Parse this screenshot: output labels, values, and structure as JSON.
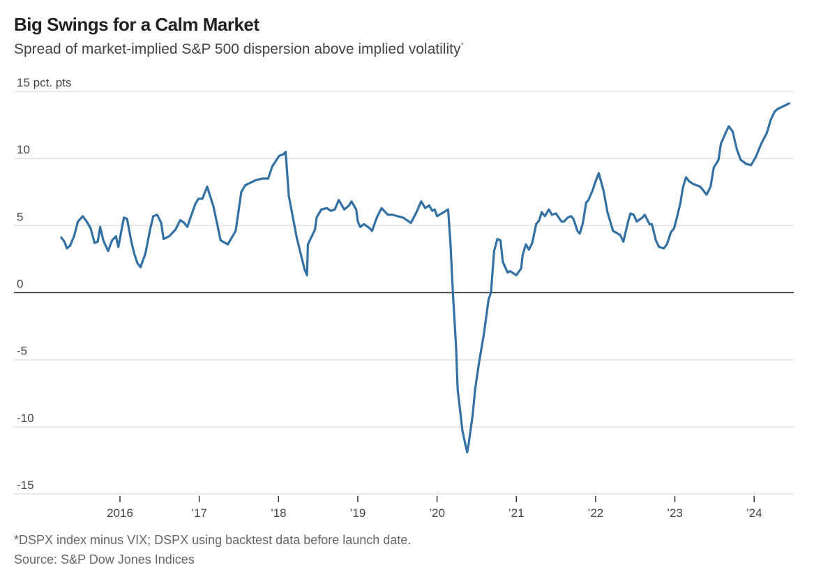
{
  "title": "Big Swings for a Calm Market",
  "subtitle": "Spread of market-implied S&P 500 dispersion above implied volatility",
  "subtitle_marker": "*",
  "footnote": "*DSPX index minus VIX; DSPX using backtest data before launch date.",
  "source": "Source: S&P Dow Jones Indices",
  "colors": {
    "line": "#3370a3",
    "grid": "#e2e2e2",
    "zero": "#333333",
    "tick": "#333333"
  },
  "chart_data": {
    "type": "line",
    "title": "Big Swings for a Calm Market",
    "subtitle": "Spread of market-implied S&P 500 dispersion above implied volatility*",
    "xlabel": "",
    "ylabel": "pct. pts",
    "ylim": [
      -15,
      15
    ],
    "xlim": [
      2014.87,
      2024.84
    ],
    "grid": true,
    "legend": "none",
    "yticks": [
      {
        "value": 15,
        "label": "15 pct. pts"
      },
      {
        "value": 10,
        "label": "10"
      },
      {
        "value": 5,
        "label": "5"
      },
      {
        "value": 0,
        "label": "0"
      },
      {
        "value": -5,
        "label": "-5"
      },
      {
        "value": -10,
        "label": "-10"
      },
      {
        "value": -15,
        "label": "-15"
      }
    ],
    "xticks": [
      {
        "value": 2016,
        "label": "2016"
      },
      {
        "value": 2017,
        "label": "’17"
      },
      {
        "value": 2018,
        "label": "’18"
      },
      {
        "value": 2019,
        "label": "’19"
      },
      {
        "value": 2020,
        "label": "’20"
      },
      {
        "value": 2021,
        "label": "’21"
      },
      {
        "value": 2022,
        "label": "’22"
      },
      {
        "value": 2023,
        "label": "’23"
      },
      {
        "value": 2024,
        "label": "’24"
      }
    ],
    "series": [
      {
        "name": "DSPX minus VIX",
        "points": [
          [
            2015.26,
            4.1
          ],
          [
            2015.3,
            3.8
          ],
          [
            2015.33,
            3.3
          ],
          [
            2015.37,
            3.5
          ],
          [
            2015.42,
            4.2
          ],
          [
            2015.47,
            5.3
          ],
          [
            2015.53,
            5.7
          ],
          [
            2015.58,
            5.3
          ],
          [
            2015.63,
            4.8
          ],
          [
            2015.68,
            3.7
          ],
          [
            2015.72,
            3.8
          ],
          [
            2015.75,
            4.9
          ],
          [
            2015.79,
            3.9
          ],
          [
            2015.85,
            3.1
          ],
          [
            2015.9,
            3.9
          ],
          [
            2015.95,
            4.2
          ],
          [
            2015.98,
            3.4
          ],
          [
            2016.03,
            5.0
          ],
          [
            2016.05,
            5.6
          ],
          [
            2016.09,
            5.5
          ],
          [
            2016.14,
            3.9
          ],
          [
            2016.18,
            2.9
          ],
          [
            2016.22,
            2.2
          ],
          [
            2016.26,
            1.9
          ],
          [
            2016.32,
            2.9
          ],
          [
            2016.38,
            4.7
          ],
          [
            2016.42,
            5.7
          ],
          [
            2016.47,
            5.8
          ],
          [
            2016.52,
            5.2
          ],
          [
            2016.55,
            4.0
          ],
          [
            2016.62,
            4.2
          ],
          [
            2016.7,
            4.7
          ],
          [
            2016.76,
            5.4
          ],
          [
            2016.81,
            5.2
          ],
          [
            2016.85,
            4.9
          ],
          [
            2016.89,
            5.6
          ],
          [
            2016.95,
            6.6
          ],
          [
            2016.99,
            7.0
          ],
          [
            2017.04,
            7.0
          ],
          [
            2017.1,
            7.9
          ],
          [
            2017.18,
            6.4
          ],
          [
            2017.27,
            3.9
          ],
          [
            2017.36,
            3.6
          ],
          [
            2017.46,
            4.6
          ],
          [
            2017.53,
            7.5
          ],
          [
            2017.58,
            8.0
          ],
          [
            2017.72,
            8.4
          ],
          [
            2017.8,
            8.5
          ],
          [
            2017.87,
            8.5
          ],
          [
            2017.92,
            9.4
          ],
          [
            2018.01,
            10.2
          ],
          [
            2018.06,
            10.3
          ],
          [
            2018.09,
            10.5
          ],
          [
            2018.13,
            7.2
          ],
          [
            2018.23,
            4.1
          ],
          [
            2018.33,
            1.7
          ],
          [
            2018.36,
            1.3
          ],
          [
            2018.37,
            3.6
          ],
          [
            2018.46,
            4.7
          ],
          [
            2018.48,
            5.6
          ],
          [
            2018.54,
            6.2
          ],
          [
            2018.61,
            6.3
          ],
          [
            2018.66,
            6.1
          ],
          [
            2018.71,
            6.2
          ],
          [
            2018.76,
            6.9
          ],
          [
            2018.83,
            6.2
          ],
          [
            2018.89,
            6.5
          ],
          [
            2018.92,
            6.8
          ],
          [
            2018.98,
            6.2
          ],
          [
            2019.0,
            5.3
          ],
          [
            2019.03,
            4.9
          ],
          [
            2019.08,
            5.1
          ],
          [
            2019.15,
            4.8
          ],
          [
            2019.18,
            4.6
          ],
          [
            2019.24,
            5.6
          ],
          [
            2019.3,
            6.3
          ],
          [
            2019.38,
            5.8
          ],
          [
            2019.44,
            5.8
          ],
          [
            2019.5,
            5.7
          ],
          [
            2019.57,
            5.6
          ],
          [
            2019.62,
            5.4
          ],
          [
            2019.67,
            5.2
          ],
          [
            2019.74,
            6.0
          ],
          [
            2019.8,
            6.8
          ],
          [
            2019.85,
            6.3
          ],
          [
            2019.9,
            6.5
          ],
          [
            2019.94,
            6.1
          ],
          [
            2019.97,
            6.2
          ],
          [
            2020.0,
            5.7
          ],
          [
            2020.14,
            6.2
          ],
          [
            2020.17,
            3.6
          ],
          [
            2020.2,
            0.0
          ],
          [
            2020.24,
            -4.1
          ],
          [
            2020.26,
            -7.2
          ],
          [
            2020.32,
            -10.3
          ],
          [
            2020.36,
            -11.4
          ],
          [
            2020.38,
            -11.9
          ],
          [
            2020.4,
            -11.2
          ],
          [
            2020.45,
            -9.1
          ],
          [
            2020.48,
            -7.2
          ],
          [
            2020.53,
            -5.2
          ],
          [
            2020.59,
            -3.1
          ],
          [
            2020.65,
            -0.5
          ],
          [
            2020.68,
            0.0
          ],
          [
            2020.7,
            1.6
          ],
          [
            2020.72,
            3.1
          ],
          [
            2020.76,
            4.0
          ],
          [
            2020.8,
            3.9
          ],
          [
            2020.83,
            2.3
          ],
          [
            2020.89,
            1.5
          ],
          [
            2020.92,
            1.6
          ],
          [
            2021.0,
            1.3
          ],
          [
            2021.06,
            1.8
          ],
          [
            2021.08,
            2.8
          ],
          [
            2021.12,
            3.6
          ],
          [
            2021.16,
            3.2
          ],
          [
            2021.2,
            3.7
          ],
          [
            2021.25,
            5.1
          ],
          [
            2021.29,
            5.4
          ],
          [
            2021.32,
            6.0
          ],
          [
            2021.36,
            5.7
          ],
          [
            2021.41,
            6.2
          ],
          [
            2021.45,
            5.8
          ],
          [
            2021.5,
            5.9
          ],
          [
            2021.57,
            5.3
          ],
          [
            2021.6,
            5.3
          ],
          [
            2021.65,
            5.6
          ],
          [
            2021.69,
            5.7
          ],
          [
            2021.72,
            5.5
          ],
          [
            2021.77,
            4.6
          ],
          [
            2021.8,
            4.4
          ],
          [
            2021.84,
            5.2
          ],
          [
            2021.88,
            6.7
          ],
          [
            2021.91,
            6.9
          ],
          [
            2021.96,
            7.6
          ],
          [
            2022.0,
            8.3
          ],
          [
            2022.04,
            8.9
          ],
          [
            2022.1,
            7.6
          ],
          [
            2022.15,
            6.0
          ],
          [
            2022.22,
            4.6
          ],
          [
            2022.28,
            4.4
          ],
          [
            2022.31,
            4.3
          ],
          [
            2022.35,
            3.8
          ],
          [
            2022.41,
            5.3
          ],
          [
            2022.44,
            5.9
          ],
          [
            2022.48,
            5.8
          ],
          [
            2022.52,
            5.3
          ],
          [
            2022.59,
            5.6
          ],
          [
            2022.62,
            5.8
          ],
          [
            2022.68,
            5.1
          ],
          [
            2022.71,
            5.1
          ],
          [
            2022.76,
            3.9
          ],
          [
            2022.8,
            3.4
          ],
          [
            2022.86,
            3.3
          ],
          [
            2022.9,
            3.6
          ],
          [
            2022.95,
            4.5
          ],
          [
            2022.99,
            4.8
          ],
          [
            2023.03,
            5.7
          ],
          [
            2023.07,
            6.7
          ],
          [
            2023.1,
            7.8
          ],
          [
            2023.14,
            8.6
          ],
          [
            2023.18,
            8.3
          ],
          [
            2023.23,
            8.1
          ],
          [
            2023.32,
            7.9
          ],
          [
            2023.36,
            7.6
          ],
          [
            2023.4,
            7.3
          ],
          [
            2023.45,
            7.9
          ],
          [
            2023.49,
            9.3
          ],
          [
            2023.55,
            9.9
          ],
          [
            2023.58,
            11.1
          ],
          [
            2023.64,
            11.9
          ],
          [
            2023.68,
            12.4
          ],
          [
            2023.73,
            12.0
          ],
          [
            2023.78,
            10.7
          ],
          [
            2023.83,
            9.9
          ],
          [
            2023.9,
            9.6
          ],
          [
            2023.96,
            9.5
          ],
          [
            2024.02,
            10.1
          ],
          [
            2024.09,
            11.1
          ],
          [
            2024.16,
            11.9
          ],
          [
            2024.21,
            12.9
          ],
          [
            2024.26,
            13.5
          ],
          [
            2024.3,
            13.7
          ],
          [
            2024.37,
            13.9
          ],
          [
            2024.44,
            14.1
          ]
        ]
      }
    ]
  }
}
